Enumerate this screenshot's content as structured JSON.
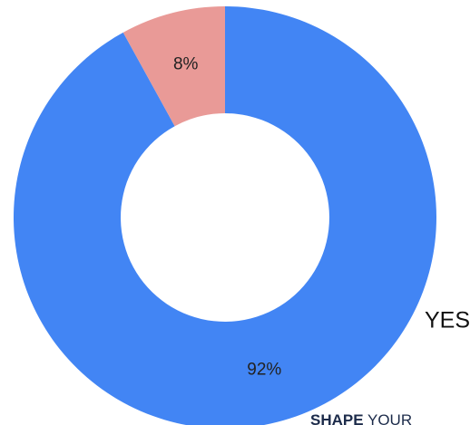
{
  "chart_data": {
    "type": "donut",
    "categories": [
      "YES",
      null
    ],
    "values": [
      92,
      8
    ],
    "value_labels": [
      "92%",
      "8%"
    ],
    "colors": [
      "#4285f4",
      "#e99a97"
    ],
    "annotations": [
      "SHAPE",
      "YOUR"
    ]
  }
}
